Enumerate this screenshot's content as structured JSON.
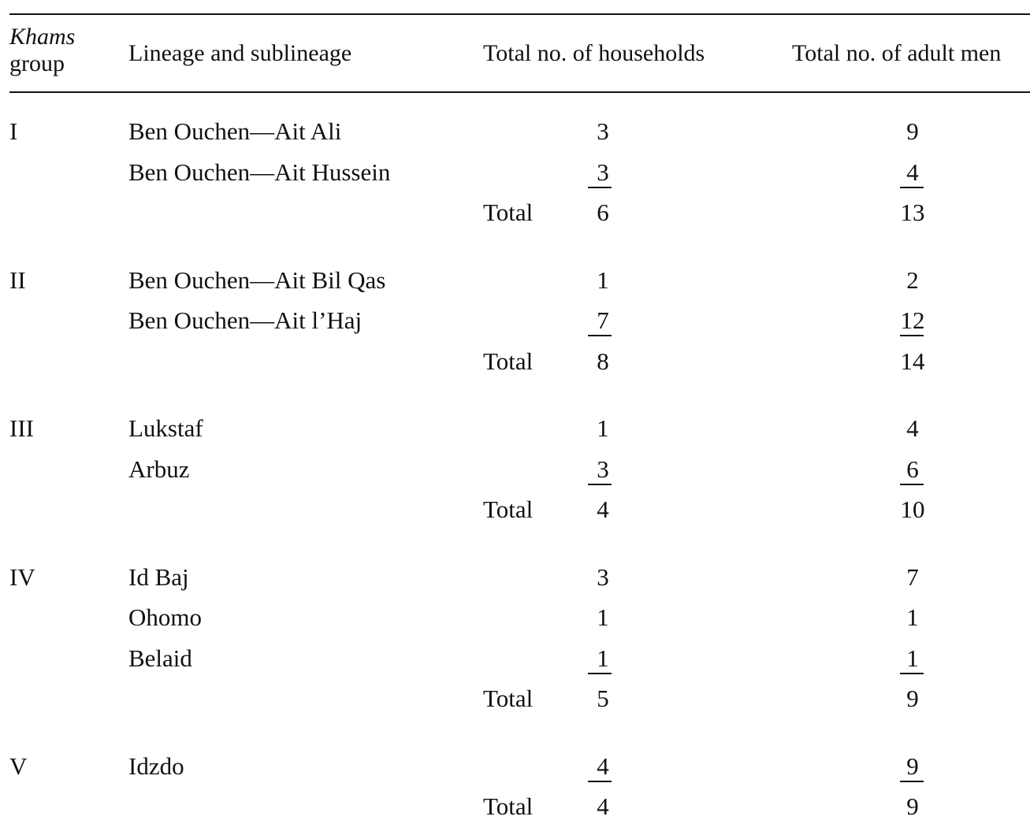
{
  "header": {
    "khams_italic": "Khams",
    "khams_rest": "group",
    "lineage": "Lineage and sublineage",
    "households": "Total no. of households",
    "adult_men": "Total no. of adult men"
  },
  "total_label": "Total",
  "groups": [
    {
      "group": "I",
      "rows": [
        {
          "lineage": "Ben Ouchen—Ait Ali",
          "households": "3",
          "men": "9"
        },
        {
          "lineage": "Ben Ouchen—Ait Hussein",
          "households": "3",
          "men": "4"
        }
      ],
      "total_households": "6",
      "total_men": "13"
    },
    {
      "group": "II",
      "rows": [
        {
          "lineage": "Ben Ouchen—Ait Bil Qas",
          "households": "1",
          "men": "2"
        },
        {
          "lineage": "Ben Ouchen—Ait l’Haj",
          "households": "7",
          "men": "12"
        }
      ],
      "total_households": "8",
      "total_men": "14"
    },
    {
      "group": "III",
      "rows": [
        {
          "lineage": "Lukstaf",
          "households": "1",
          "men": "4"
        },
        {
          "lineage": "Arbuz",
          "households": "3",
          "men": "6"
        }
      ],
      "total_households": "4",
      "total_men": "10"
    },
    {
      "group": "IV",
      "rows": [
        {
          "lineage": "Id Baj",
          "households": "3",
          "men": "7"
        },
        {
          "lineage": "Ohomo",
          "households": "1",
          "men": "1"
        },
        {
          "lineage": "Belaid",
          "households": "1",
          "men": "1"
        }
      ],
      "total_households": "5",
      "total_men": "9"
    },
    {
      "group": "V",
      "rows": [
        {
          "lineage": "Idzdo",
          "households": "4",
          "men": "9"
        }
      ],
      "total_households": "4",
      "total_men": "9"
    }
  ]
}
